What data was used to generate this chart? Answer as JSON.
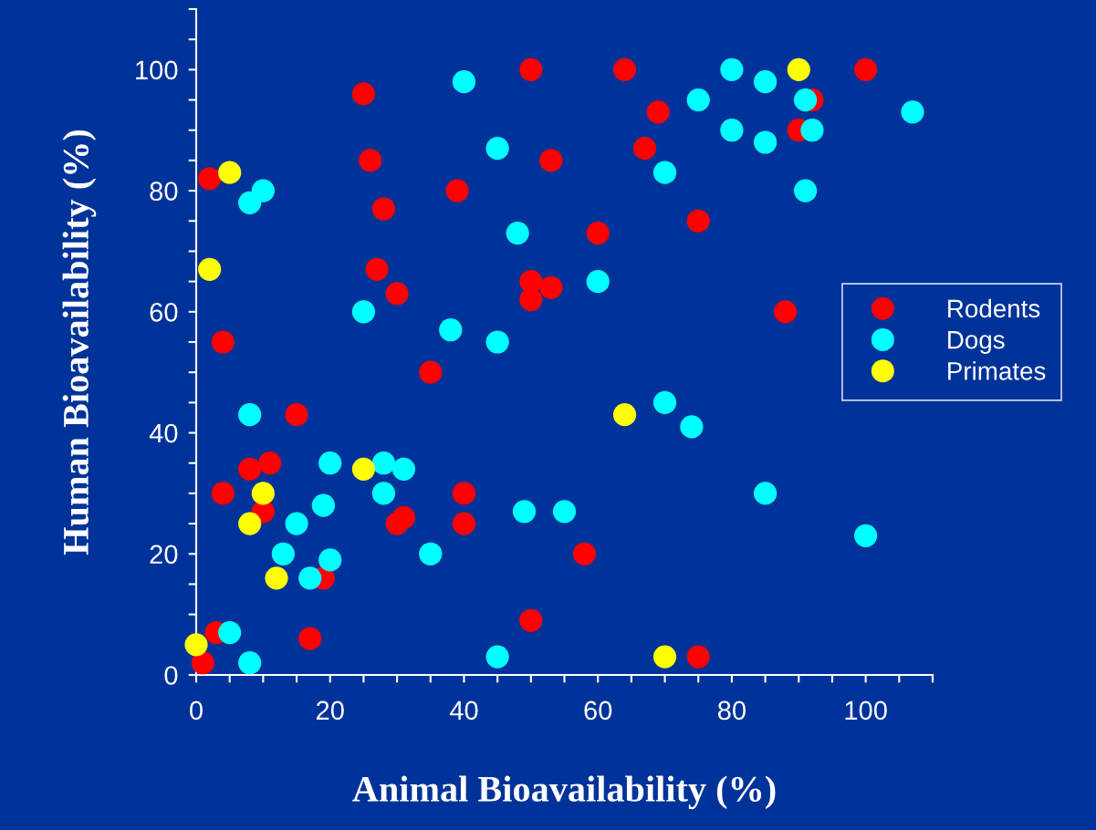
{
  "chart_data": {
    "type": "scatter",
    "xlabel": "Animal Bioavailability (%)",
    "ylabel": "Human Bioavailability (%)",
    "xlim": [
      0,
      110
    ],
    "ylim": [
      0,
      110
    ],
    "xticks": [
      0,
      {
        "value": 5,
        "label": null
      },
      {
        "value": 10,
        "label": null
      },
      {
        "value": 15,
        "label": null
      },
      20,
      {
        "value": 25,
        "label": null
      },
      {
        "value": 30,
        "label": null
      },
      {
        "value": 35,
        "label": null
      },
      40,
      {
        "value": 45,
        "label": null
      },
      {
        "value": 50,
        "label": null
      },
      {
        "value": 55,
        "label": null
      },
      60,
      {
        "value": 65,
        "label": null
      },
      {
        "value": 70,
        "label": null
      },
      {
        "value": 75,
        "label": null
      },
      80,
      {
        "value": 85,
        "label": null
      },
      {
        "value": 90,
        "label": null
      },
      {
        "value": 95,
        "label": null
      },
      100,
      {
        "value": 105,
        "label": null
      },
      {
        "value": 110,
        "label": null
      }
    ],
    "yticks": [
      0,
      {
        "value": 5,
        "label": null
      },
      {
        "value": 10,
        "label": null
      },
      {
        "value": 15,
        "label": null
      },
      20,
      {
        "value": 25,
        "label": null
      },
      {
        "value": 30,
        "label": null
      },
      {
        "value": 35,
        "label": null
      },
      40,
      {
        "value": 45,
        "label": null
      },
      {
        "value": 50,
        "label": null
      },
      {
        "value": 55,
        "label": null
      },
      60,
      {
        "value": 65,
        "label": null
      },
      {
        "value": 70,
        "label": null
      },
      {
        "value": 75,
        "label": null
      },
      80,
      {
        "value": 85,
        "label": null
      },
      {
        "value": 90,
        "label": null
      },
      {
        "value": 95,
        "label": null
      },
      100,
      {
        "value": 105,
        "label": null
      },
      {
        "value": 110,
        "label": null
      }
    ],
    "grid": false,
    "legend": "right",
    "marker": "circle",
    "series": [
      {
        "name": "Rodents",
        "color": "#ff0000",
        "x": [
          2,
          25,
          50,
          26,
          53,
          39,
          28,
          27,
          30,
          50,
          50,
          53,
          4,
          35,
          15,
          8,
          11,
          4,
          10,
          19,
          17,
          3,
          1,
          30,
          31,
          40,
          40,
          50,
          64,
          69,
          67,
          75,
          60,
          88,
          100,
          92,
          90,
          58,
          75
        ],
        "values": [
          82,
          96,
          100,
          85,
          85,
          80,
          77,
          67,
          63,
          65,
          62,
          64,
          55,
          50,
          43,
          34,
          35,
          30,
          27,
          16,
          6,
          7,
          2,
          25,
          26,
          30,
          25,
          9,
          100,
          93,
          87,
          75,
          73,
          60,
          100,
          95,
          90,
          20,
          3
        ]
      },
      {
        "name": "Dogs",
        "color": "#00ffff",
        "x": [
          40,
          45,
          48,
          8,
          10,
          25,
          38,
          45,
          8,
          20,
          28,
          31,
          28,
          19,
          15,
          13,
          20,
          17,
          35,
          49,
          5,
          8,
          45,
          80,
          85,
          75,
          80,
          85,
          91,
          92,
          107,
          91,
          70,
          60,
          70,
          74,
          85,
          100,
          55
        ],
        "values": [
          98,
          87,
          73,
          78,
          80,
          60,
          57,
          55,
          43,
          35,
          35,
          34,
          30,
          28,
          25,
          20,
          19,
          16,
          20,
          27,
          7,
          2,
          3,
          100,
          98,
          95,
          90,
          88,
          95,
          90,
          93,
          80,
          83,
          65,
          45,
          41,
          30,
          23,
          27
        ]
      },
      {
        "name": "Primates",
        "color": "#ffff00",
        "x": [
          5,
          2,
          25,
          10,
          8,
          12,
          0,
          90,
          64,
          70
        ],
        "values": [
          83,
          67,
          34,
          30,
          25,
          16,
          5,
          100,
          43,
          3
        ]
      }
    ]
  }
}
